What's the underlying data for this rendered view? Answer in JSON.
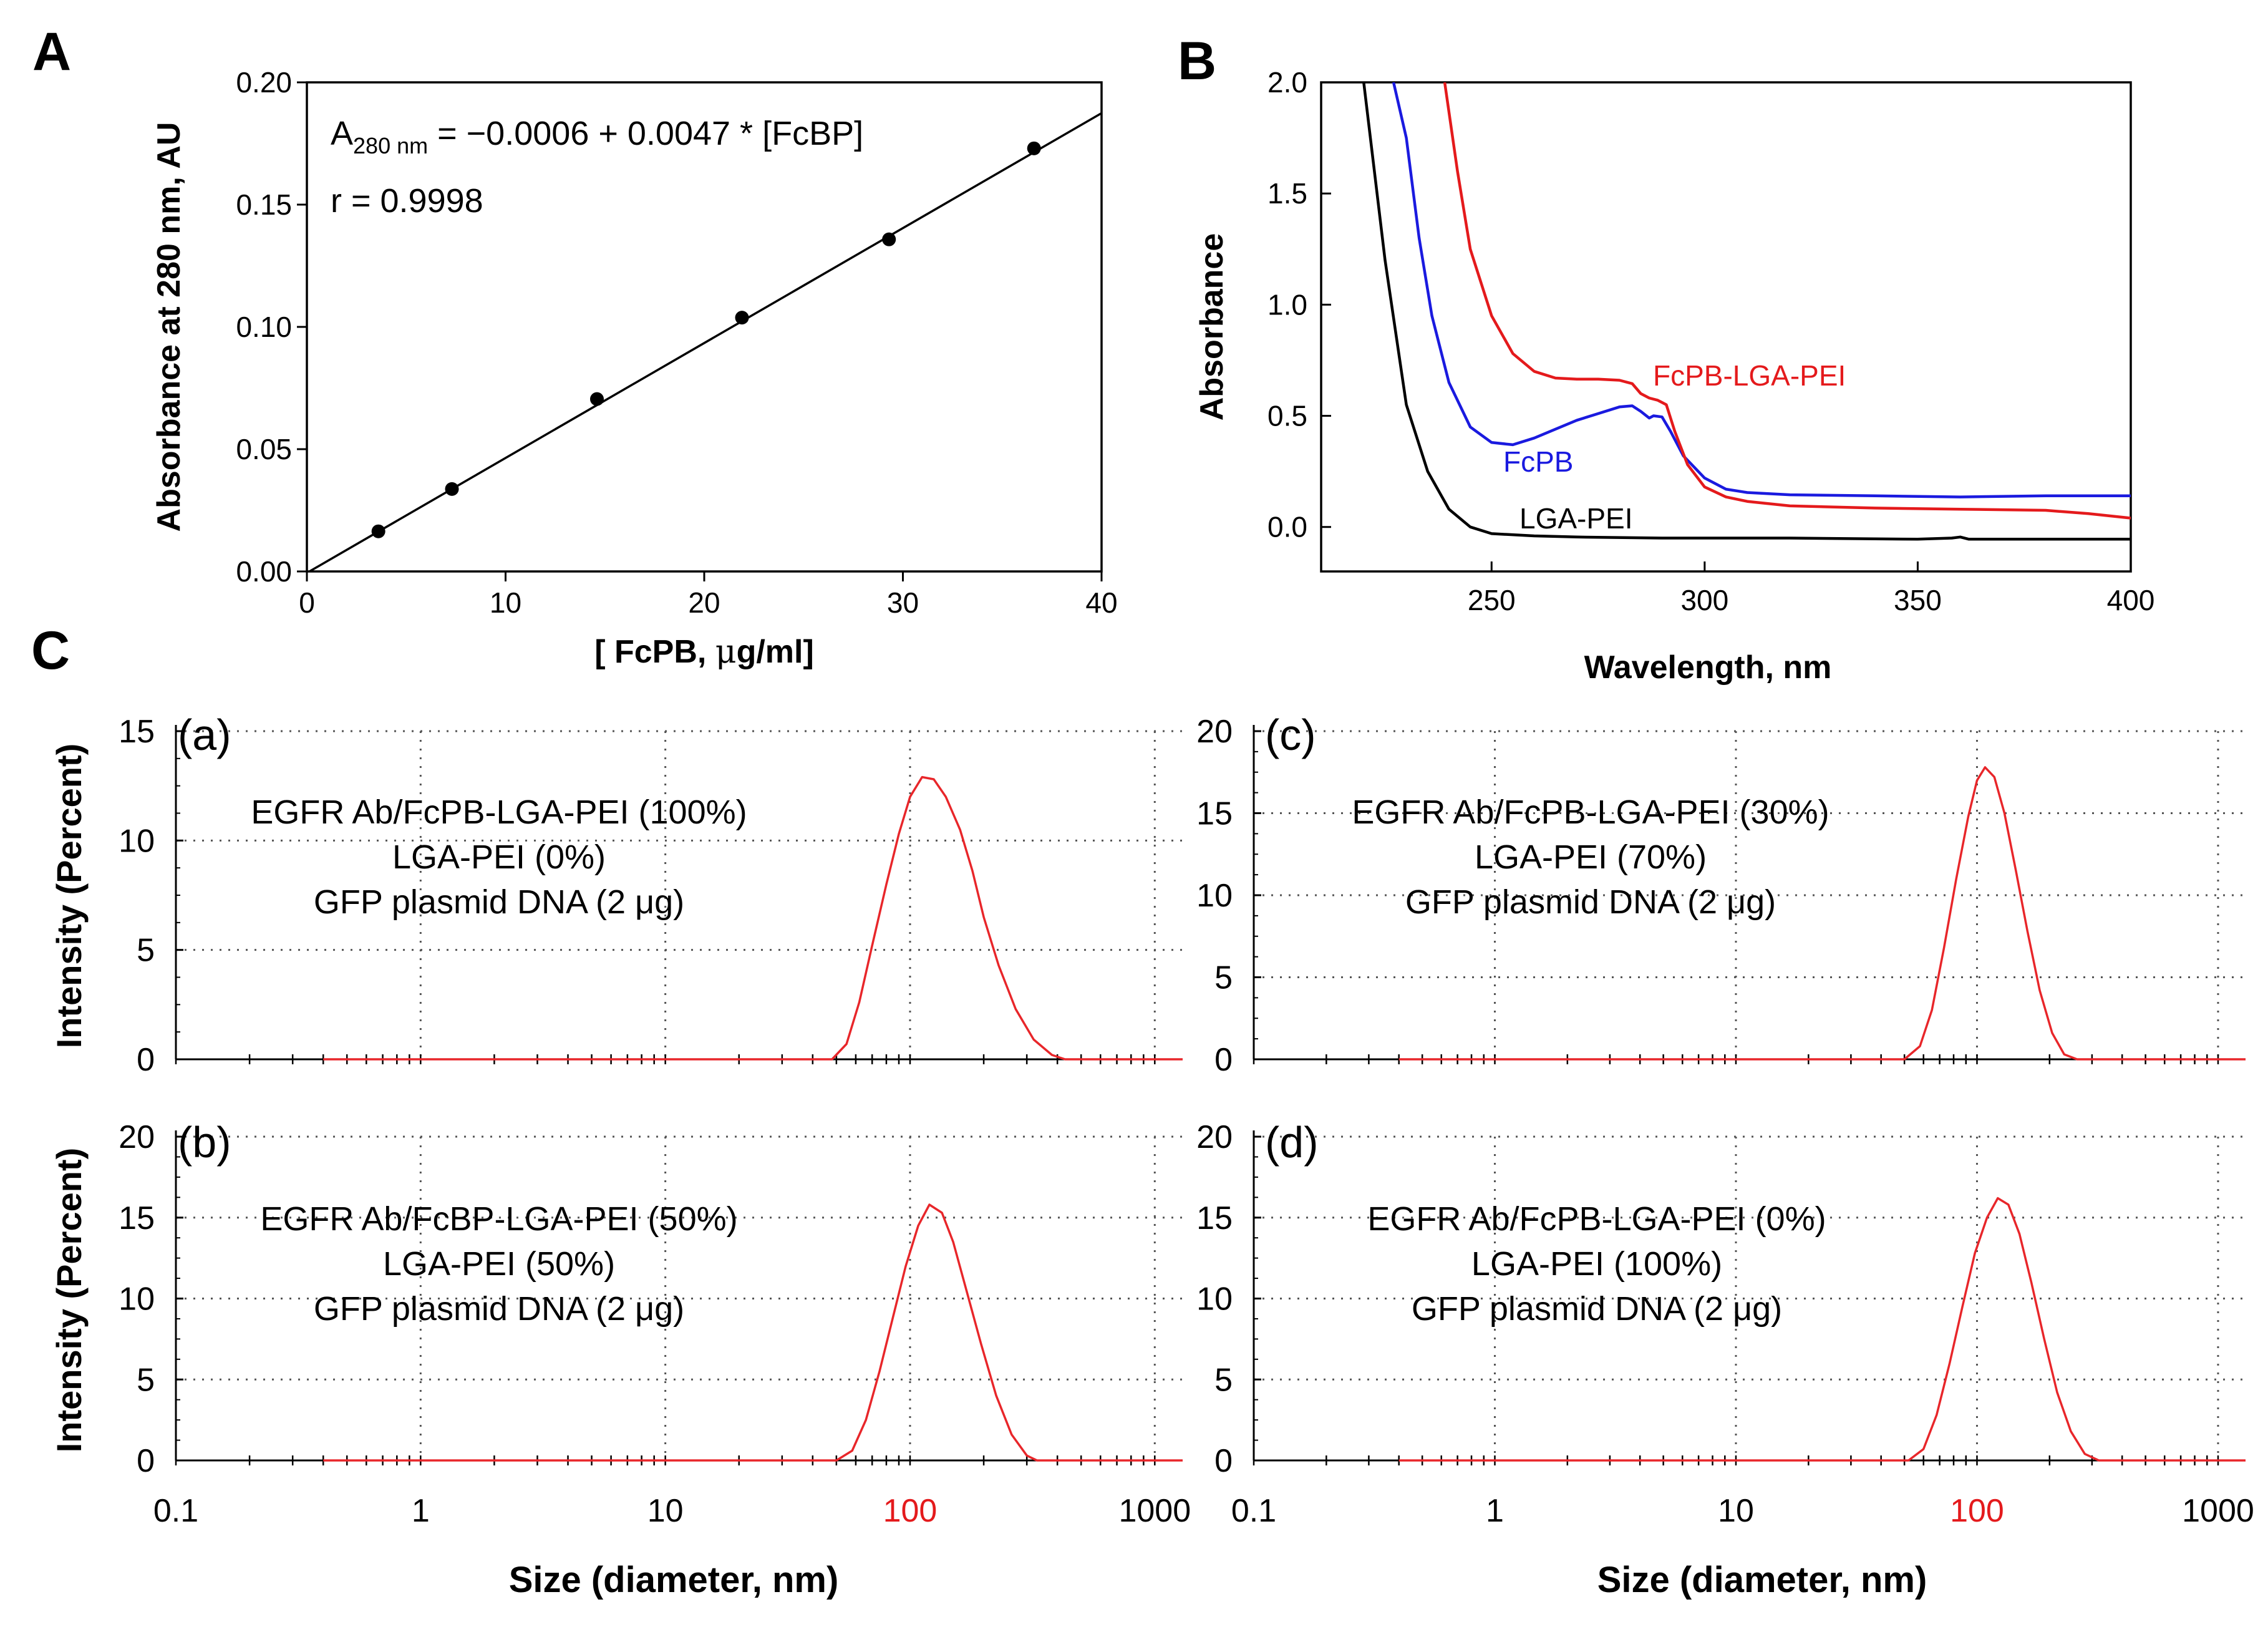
{
  "panel_labels": {
    "A": "A",
    "B": "B",
    "C": "C"
  },
  "chart_data": [
    {
      "id": "A",
      "type": "scatter",
      "xlabel_parts": [
        "[ FcPB, ",
        "μ",
        "g/ml]"
      ],
      "ylabel": "Absorbance at 280 nm, AU",
      "xlim": [
        0,
        40
      ],
      "ylim": [
        0,
        0.2
      ],
      "xticks": [
        0,
        10,
        20,
        30,
        40
      ],
      "xtick_labels": [
        "0",
        "10",
        "20",
        "30",
        "40"
      ],
      "yticks": [
        0,
        0.05,
        0.1,
        0.15,
        0.2
      ],
      "ytick_labels": [
        "0.00",
        "0.05",
        "0.10",
        "0.15",
        "0.20"
      ],
      "points": {
        "x": [
          3.6,
          7.3,
          14.6,
          21.9,
          29.3,
          36.6
        ],
        "y": [
          0.0164,
          0.0337,
          0.0705,
          0.1038,
          0.1358,
          0.173
        ]
      },
      "fit": {
        "intercept": -0.0006,
        "slope": 0.0047,
        "x_range": [
          0,
          40
        ]
      },
      "equation": {
        "A": "A",
        "sub": "280 nm",
        "rest": " = −0.0006 + 0.0047 * [FcBP]"
      },
      "r_text": "r = 0.9998"
    },
    {
      "id": "B",
      "type": "line",
      "xlabel": "Wavelength, nm",
      "ylabel": "Absorbance",
      "xlim": [
        210,
        400
      ],
      "ylim": [
        -0.2,
        2.0
      ],
      "xticks": [
        250,
        300,
        350,
        400
      ],
      "xtick_labels": [
        "250",
        "300",
        "350",
        "400"
      ],
      "yticks": [
        0,
        0.5,
        1.0,
        1.5,
        2.0
      ],
      "ytick_labels": [
        "0.0",
        "0.5",
        "1.0",
        "1.5",
        "2.0"
      ],
      "series": [
        {
          "name": "LGA-PEI",
          "color": "#000000",
          "x": [
            220,
            225,
            230,
            235,
            240,
            245,
            250,
            260,
            270,
            290,
            320,
            350,
            358,
            360,
            362,
            380,
            400
          ],
          "y": [
            2.0,
            1.2,
            0.55,
            0.25,
            0.08,
            0.0,
            -0.03,
            -0.04,
            -0.045,
            -0.05,
            -0.05,
            -0.055,
            -0.05,
            -0.045,
            -0.055,
            -0.055,
            -0.055
          ]
        },
        {
          "name": "FcPB",
          "color": "#1a1adf",
          "x": [
            227,
            230,
            233,
            236,
            240,
            245,
            250,
            255,
            260,
            265,
            270,
            275,
            280,
            283,
            285,
            287,
            288,
            290,
            292,
            295,
            300,
            305,
            310,
            320,
            340,
            360,
            380,
            400
          ],
          "y": [
            2.0,
            1.75,
            1.3,
            0.95,
            0.65,
            0.45,
            0.38,
            0.37,
            0.4,
            0.44,
            0.48,
            0.51,
            0.54,
            0.545,
            0.52,
            0.49,
            0.5,
            0.495,
            0.43,
            0.32,
            0.22,
            0.17,
            0.155,
            0.145,
            0.14,
            0.135,
            0.14,
            0.14
          ]
        },
        {
          "name": "FcPB-LGA-PEI",
          "color": "#e41a1c",
          "x": [
            239,
            242,
            245,
            250,
            255,
            260,
            265,
            270,
            275,
            280,
            283,
            285,
            287,
            289,
            291,
            293,
            296,
            300,
            305,
            310,
            320,
            340,
            360,
            380,
            390,
            400
          ],
          "y": [
            2.0,
            1.6,
            1.25,
            0.95,
            0.78,
            0.7,
            0.67,
            0.665,
            0.665,
            0.66,
            0.645,
            0.6,
            0.58,
            0.57,
            0.55,
            0.43,
            0.28,
            0.18,
            0.135,
            0.115,
            0.095,
            0.085,
            0.08,
            0.075,
            0.06,
            0.04
          ]
        }
      ],
      "labels": {
        "FcPB-LGA-PEI": "FcPB-LGA-PEI",
        "FcPB": "FcPB",
        "LGA-PEI": "LGA-PEI"
      }
    },
    {
      "id": "C-a",
      "type": "line",
      "tag": "(a)",
      "xscale": "log",
      "xlim": [
        0.1,
        1300
      ],
      "ylim": [
        0,
        15
      ],
      "yticks": [
        0,
        5,
        10,
        15
      ],
      "ytick_labels": [
        "0",
        "5",
        "10",
        "15"
      ],
      "ylabel": "Intensity (Percent)",
      "annotation": [
        "EGFR Ab/FcPB-LGA-PEI (100%)",
        "LGA-PEI (0%)",
        "GFP plasmid DNA (2 μg)"
      ],
      "series": [
        {
          "name": "size distribution",
          "color": "#e8262a",
          "x": [
            0.4,
            48,
            55,
            62,
            70,
            80,
            90,
            100,
            112,
            125,
            140,
            160,
            180,
            200,
            230,
            270,
            320,
            380,
            430,
            1300
          ],
          "y": [
            0,
            0,
            0.7,
            2.6,
            5.2,
            8.0,
            10.3,
            12.0,
            12.9,
            12.8,
            12.0,
            10.5,
            8.6,
            6.5,
            4.3,
            2.3,
            0.9,
            0.2,
            0,
            0
          ]
        }
      ]
    },
    {
      "id": "C-b",
      "type": "line",
      "tag": "(b)",
      "xscale": "log",
      "xlim": [
        0.1,
        1300
      ],
      "ylim": [
        0,
        20
      ],
      "xticks": [
        0.1,
        1,
        10,
        100,
        1000
      ],
      "xtick_labels": [
        "0.1",
        "1",
        "10",
        "100",
        "1000"
      ],
      "yticks": [
        0,
        5,
        10,
        15,
        20
      ],
      "ytick_labels": [
        "0",
        "5",
        "10",
        "15",
        "20"
      ],
      "xlabel": "Size (diameter, nm)",
      "ylabel": "Intensity (Percent)",
      "annotation": [
        "EGFR Ab/FcBP-LGA-PEI (50%)",
        "LGA-PEI (50%)",
        "GFP plasmid DNA (2 μg)"
      ],
      "series": [
        {
          "name": "size distribution",
          "color": "#e8262a",
          "x": [
            0.4,
            50,
            58,
            66,
            75,
            85,
            96,
            108,
            120,
            135,
            150,
            170,
            195,
            225,
            260,
            300,
            330,
            1300
          ],
          "y": [
            0,
            0,
            0.6,
            2.5,
            5.5,
            8.8,
            12.0,
            14.5,
            15.8,
            15.3,
            13.5,
            10.5,
            7.2,
            4.0,
            1.6,
            0.3,
            0,
            0
          ]
        }
      ]
    },
    {
      "id": "C-c",
      "type": "line",
      "tag": "(c)",
      "xscale": "log",
      "xlim": [
        0.1,
        1300
      ],
      "ylim": [
        0,
        20
      ],
      "yticks": [
        0,
        5,
        10,
        15,
        20
      ],
      "ytick_labels": [
        "0",
        "5",
        "10",
        "15",
        "20"
      ],
      "annotation": [
        "EGFR Ab/FcPB-LGA-PEI (30%)",
        "LGA-PEI (70%)",
        "GFP plasmid DNA (2 μg)"
      ],
      "series": [
        {
          "name": "size distribution",
          "color": "#e8262a",
          "x": [
            0.4,
            50,
            58,
            65,
            73,
            82,
            92,
            100,
            108,
            118,
            130,
            145,
            162,
            182,
            205,
            230,
            260,
            1300
          ],
          "y": [
            0,
            0,
            0.8,
            3.0,
            6.8,
            11.0,
            14.8,
            17.0,
            17.8,
            17.2,
            15.0,
            11.5,
            7.8,
            4.2,
            1.6,
            0.3,
            0,
            0
          ]
        }
      ]
    },
    {
      "id": "C-d",
      "type": "line",
      "tag": "(d)",
      "xscale": "log",
      "xlim": [
        0.1,
        1300
      ],
      "ylim": [
        0,
        20
      ],
      "xticks": [
        0.1,
        1,
        10,
        100,
        1000
      ],
      "xtick_labels": [
        "0.1",
        "1",
        "10",
        "100",
        "1000"
      ],
      "yticks": [
        0,
        5,
        10,
        15,
        20
      ],
      "ytick_labels": [
        "0",
        "5",
        "10",
        "15",
        "20"
      ],
      "xlabel": "Size (diameter, nm)",
      "annotation": [
        "EGFR Ab/FcPB-LGA-PEI (0%)",
        "LGA-PEI (100%)",
        "GFP plasmid DNA (2 μg)"
      ],
      "series": [
        {
          "name": "size distribution",
          "color": "#e8262a",
          "x": [
            0.4,
            52,
            60,
            68,
            77,
            87,
            98,
            110,
            122,
            135,
            150,
            168,
            190,
            215,
            245,
            280,
            320,
            1300
          ],
          "y": [
            0,
            0,
            0.7,
            2.8,
            6.0,
            9.5,
            12.8,
            15.0,
            16.2,
            15.8,
            14.0,
            11.0,
            7.5,
            4.2,
            1.8,
            0.4,
            0,
            0
          ]
        }
      ]
    }
  ],
  "colors": {
    "highlight_tick": "#e41a1c",
    "dls_curve": "#e8262a",
    "baseline": "#000000"
  }
}
